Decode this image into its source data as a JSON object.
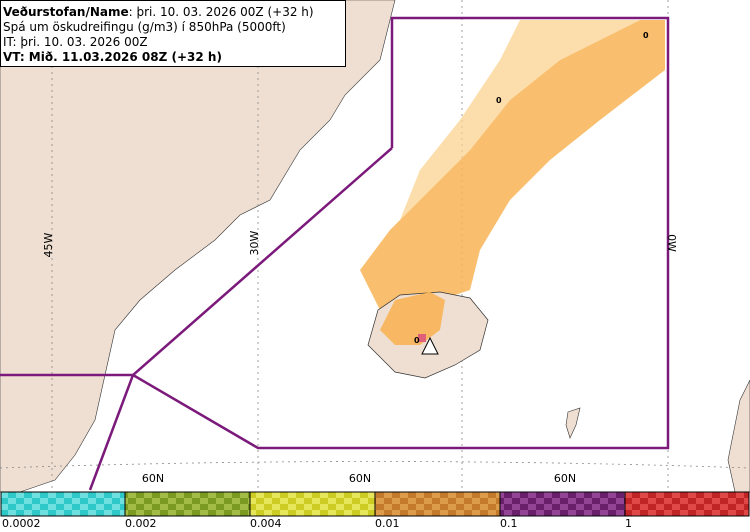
{
  "header": {
    "name_label": "Veðurstofan/Name",
    "name_value": ": þri. 10. 03. 2026 00Z (+32 h)",
    "product": "Spá um öskudreifingu (g/m3) í 850hPa (5000ft)",
    "issue_time": "IT: þri. 10. 03. 2026 00Z",
    "valid_time": "VT: Mið. 11.03.2026 08Z (+32 h)"
  },
  "map": {
    "longitude_labels": [
      "45W",
      "30W",
      "0W"
    ],
    "latitude_labels": [
      "60N",
      "60N",
      "60N"
    ],
    "markers": [
      "0",
      "0",
      "0"
    ]
  },
  "legend": {
    "labels": [
      "0.0002",
      "0.002",
      "0.004",
      "0.01",
      "0.1",
      "1"
    ]
  }
}
